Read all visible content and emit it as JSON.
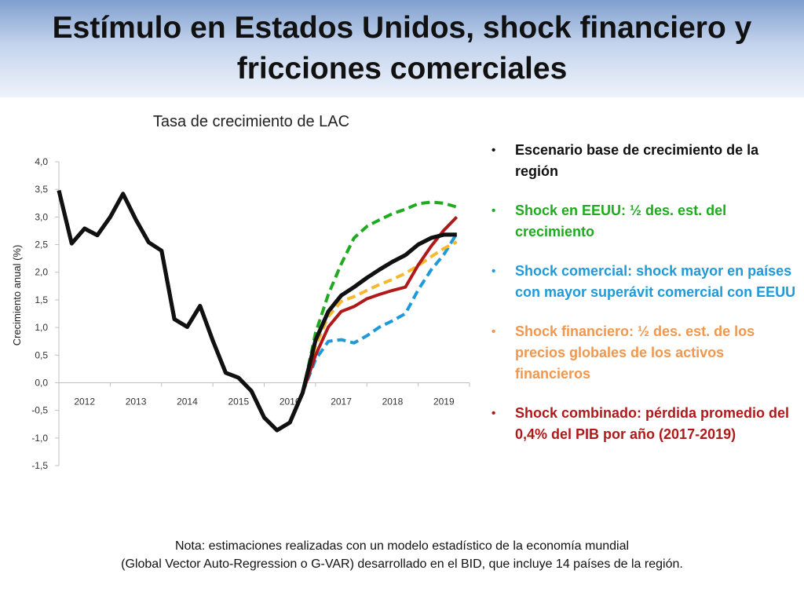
{
  "slide": {
    "title": "Estímulo en Estados Unidos, shock financiero y fricciones comerciales"
  },
  "legend": [
    {
      "text": "Escenario base de crecimiento de la región",
      "color": "#111111"
    },
    {
      "text": "Shock en EEUU: ½ des. est. del crecimiento",
      "color": "#1faa1f"
    },
    {
      "text": "Shock comercial: shock mayor en países con mayor superávit comercial con EEUU",
      "color": "#1f9ad8"
    },
    {
      "text": "Shock financiero: ½ des. est. de los precios globales de los activos financieros",
      "color": "#f0974d"
    },
    {
      "text": "Shock combinado: pérdida promedio del 0,4% del PIB por año (2017-2019)",
      "color": "#b01919"
    }
  ],
  "note": {
    "line1": "Nota: estimaciones realizadas con un modelo estadístico de la economía mundial",
    "line2": "(Global Vector Auto-Regression o G-VAR) desarrollado en el BID, que incluye 14 países de la región."
  },
  "chart_data": {
    "type": "line",
    "title": "Tasa de crecimiento de LAC",
    "ylabel": "Crecimiento anual (%)",
    "xlabel": "",
    "ylim": [
      -1.5,
      4.0
    ],
    "yticks": [
      4.0,
      3.5,
      3.0,
      2.5,
      2.0,
      1.5,
      1.0,
      0.5,
      0.0,
      -0.5,
      -1.0,
      -1.5
    ],
    "ytick_labels": [
      "4,0",
      "3,5",
      "3,0",
      "2,5",
      "2,0",
      "1,5",
      "1,0",
      "0,5",
      "0,0",
      "-0,5",
      "-1,0",
      "-1,5"
    ],
    "xlim": [
      2012,
      2020
    ],
    "xticks": [
      2012,
      2013,
      2014,
      2015,
      2016,
      2017,
      2018,
      2019
    ],
    "xtick_labels": [
      "2012",
      "2013",
      "2014",
      "2015",
      "2016",
      "2017",
      "2018",
      "2019"
    ],
    "grid": false,
    "legend_position": "right",
    "series": [
      {
        "color": "#111111",
        "dashed": false,
        "width": 5,
        "x": [
          2012.0,
          2012.25,
          2012.5,
          2012.75,
          2013.0,
          2013.25,
          2013.5,
          2013.75,
          2014.0,
          2014.25,
          2014.5,
          2014.75,
          2015.0,
          2015.25,
          2015.5,
          2015.75,
          2016.0,
          2016.25,
          2016.5,
          2016.75,
          2017.0,
          2017.25,
          2017.5,
          2017.75,
          2018.0,
          2018.25,
          2018.5,
          2018.75,
          2019.0,
          2019.25,
          2019.5,
          2019.75
        ],
        "y": [
          3.48,
          2.52,
          2.79,
          2.67,
          3.0,
          3.42,
          2.95,
          2.54,
          2.39,
          1.15,
          1.01,
          1.39,
          0.76,
          0.18,
          0.09,
          -0.15,
          -0.63,
          -0.86,
          -0.72,
          -0.18,
          0.77,
          1.29,
          1.58,
          1.73,
          1.9,
          2.05,
          2.19,
          2.31,
          2.5,
          2.62,
          2.68,
          2.68
        ]
      },
      {
        "color": "#1faa1f",
        "dashed": true,
        "width": 4,
        "x": [
          2016.75,
          2017.0,
          2017.25,
          2017.5,
          2017.75,
          2018.0,
          2018.25,
          2018.5,
          2018.75,
          2019.0,
          2019.25,
          2019.5,
          2019.75
        ],
        "y": [
          -0.18,
          0.9,
          1.6,
          2.15,
          2.62,
          2.83,
          2.95,
          3.06,
          3.14,
          3.24,
          3.27,
          3.25,
          3.18
        ]
      },
      {
        "color": "#1f9ad8",
        "dashed": true,
        "width": 4,
        "x": [
          2016.75,
          2017.0,
          2017.25,
          2017.5,
          2017.75,
          2018.0,
          2018.25,
          2018.5,
          2018.75,
          2019.0,
          2019.25,
          2019.5,
          2019.75
        ],
        "y": [
          -0.18,
          0.42,
          0.75,
          0.78,
          0.72,
          0.85,
          1.01,
          1.12,
          1.25,
          1.68,
          2.04,
          2.32,
          2.7
        ]
      },
      {
        "color": "#f5b82e",
        "dashed": true,
        "width": 4,
        "x": [
          2016.75,
          2017.0,
          2017.25,
          2017.5,
          2017.75,
          2018.0,
          2018.25,
          2018.5,
          2018.75,
          2019.0,
          2019.25,
          2019.5,
          2019.75
        ],
        "y": [
          -0.18,
          0.67,
          1.2,
          1.47,
          1.56,
          1.67,
          1.78,
          1.87,
          1.98,
          2.12,
          2.28,
          2.43,
          2.55
        ]
      },
      {
        "color": "#b01919",
        "dashed": false,
        "width": 4,
        "x": [
          2016.75,
          2017.0,
          2017.25,
          2017.5,
          2017.75,
          2018.0,
          2018.25,
          2018.5,
          2018.75,
          2019.0,
          2019.25,
          2019.5,
          2019.75
        ],
        "y": [
          -0.18,
          0.5,
          1.01,
          1.29,
          1.38,
          1.52,
          1.6,
          1.67,
          1.73,
          2.13,
          2.47,
          2.76,
          3.0
        ]
      }
    ]
  }
}
